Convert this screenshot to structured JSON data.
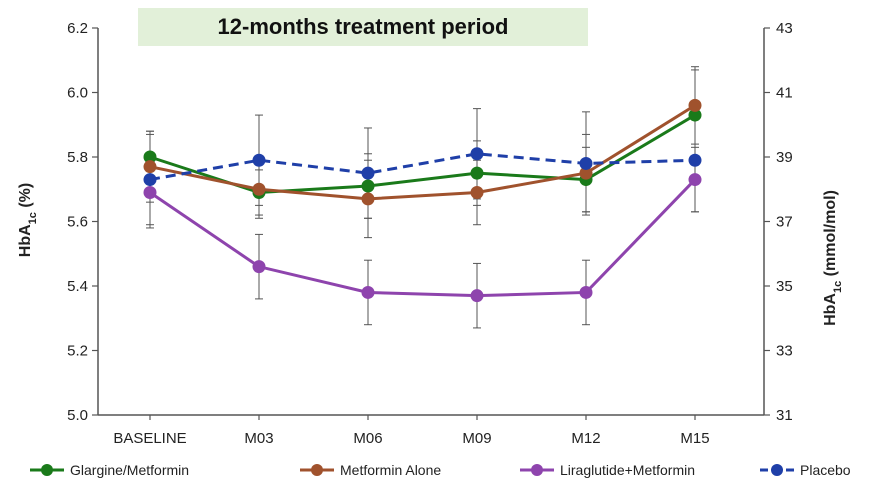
{
  "chart_data": {
    "type": "line",
    "title": "12-months treatment period",
    "categories": [
      "BASELINE",
      "M03",
      "M06",
      "M09",
      "M12",
      "M15"
    ],
    "ylabel_left": {
      "main": "HbA",
      "sub": "1c",
      "unit": " (%)"
    },
    "ylabel_right": {
      "main": "HbA",
      "sub": "1c",
      "unit": " (mmol/mol)"
    },
    "ylim_left": [
      5.0,
      6.2
    ],
    "yticks_left": [
      "5.0",
      "5.2",
      "5.4",
      "5.6",
      "5.8",
      "6.0",
      "6.2"
    ],
    "ylim_right": [
      31,
      43
    ],
    "yticks_right": [
      "31",
      "33",
      "35",
      "37",
      "39",
      "41",
      "43"
    ],
    "legend_position": "bottom",
    "grid": false,
    "series": [
      {
        "name": "Glargine/Metformin",
        "color": "#1a7a1a",
        "dashed": false,
        "values": [
          5.8,
          5.69,
          5.71,
          5.75,
          5.73,
          5.93
        ],
        "errors": [
          0.07,
          0.07,
          0.1,
          0.1,
          0.1,
          0.14
        ]
      },
      {
        "name": "Metformin Alone",
        "color": "#a0522d",
        "dashed": false,
        "values": [
          5.77,
          5.7,
          5.67,
          5.69,
          5.75,
          5.96
        ],
        "errors": [
          0.11,
          0.09,
          0.12,
          0.1,
          0.12,
          0.12
        ]
      },
      {
        "name": "Liraglutide+Metformin",
        "color": "#8e44ad",
        "dashed": false,
        "values": [
          5.69,
          5.46,
          5.38,
          5.37,
          5.38,
          5.73
        ],
        "errors": [
          0.1,
          0.1,
          0.1,
          0.1,
          0.1,
          0.1
        ]
      },
      {
        "name": "Placebo",
        "color": "#1f3fa8",
        "dashed": true,
        "values": [
          5.73,
          5.79,
          5.75,
          5.81,
          5.78,
          5.79
        ],
        "errors": [
          0.15,
          0.14,
          0.14,
          0.14,
          0.16,
          0.16
        ]
      }
    ]
  }
}
